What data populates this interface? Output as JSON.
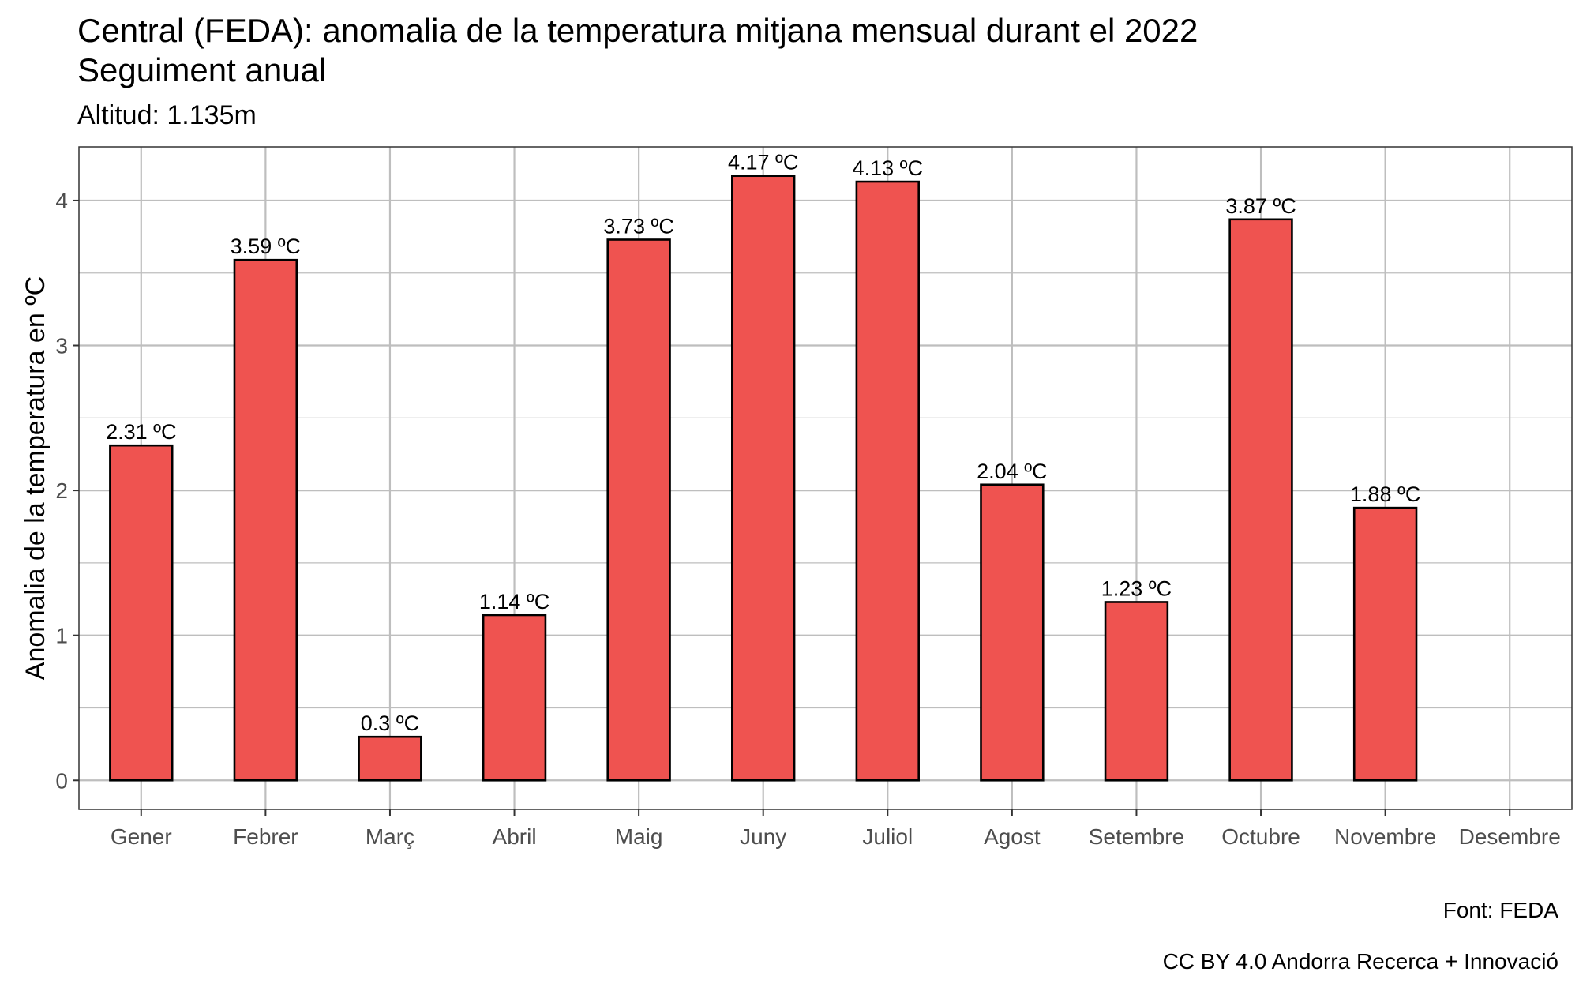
{
  "chart_data": {
    "type": "bar",
    "title_lines": [
      "Central (FEDA): anomalia de la temperatura mitjana mensual durant el 2022",
      "Seguiment anual"
    ],
    "subtitle": "Altitud: 1.135m",
    "xlabel": "",
    "ylabel": "Anomalia de la temperatura en ºC",
    "categories": [
      "Gener",
      "Febrer",
      "Març",
      "Abril",
      "Maig",
      "Juny",
      "Juliol",
      "Agost",
      "Setembre",
      "Octubre",
      "Novembre",
      "Desembre"
    ],
    "values": [
      2.31,
      3.59,
      0.3,
      1.14,
      3.73,
      4.17,
      4.13,
      2.04,
      1.23,
      3.87,
      1.88,
      null
    ],
    "data_labels": [
      "2.31 ºC",
      "3.59 ºC",
      "0.3 ºC",
      "1.14 ºC",
      "3.73 ºC",
      "4.17 ºC",
      "4.13 ºC",
      "2.04 ºC",
      "1.23 ºC",
      "3.87 ºC",
      "1.88 ºC",
      ""
    ],
    "y_ticks": [
      0,
      1,
      2,
      3,
      4
    ],
    "ylim": [
      -0.2,
      4.37
    ],
    "grid": true,
    "bar_color": "#ef5350",
    "bar_edge_color": "#000000",
    "grid_color": "#bebebe",
    "captions": [
      "Font: FEDA",
      "CC BY 4.0 Andorra Recerca + Innovació"
    ]
  }
}
